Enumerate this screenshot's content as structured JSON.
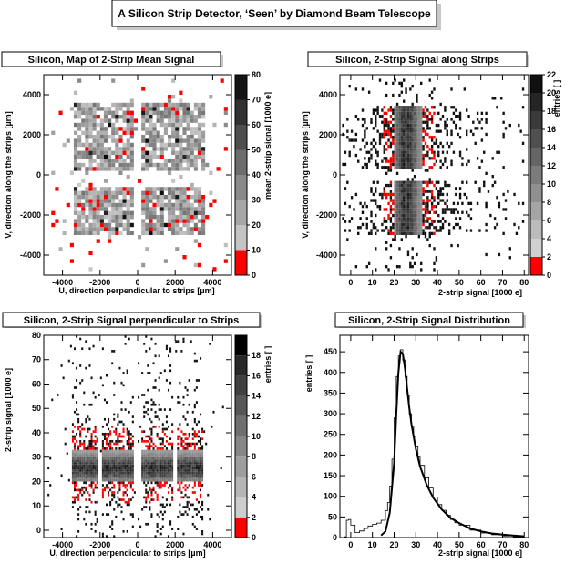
{
  "main_title": "A Silicon Strip Detector, ‘Seen’ by Diamond Beam Telescope",
  "chart_data": [
    {
      "type": "heatmap",
      "title": "Silicon, Map of 2-Strip Mean Signal",
      "xlabel": "U, direction perpendicular to strips [µm]",
      "ylabel": "V, direction along the strips [µm]",
      "zlabel": "mean 2-strip signal [1000 e]",
      "xlim": [
        -5000,
        5000
      ],
      "ylim": [
        -5000,
        5000
      ],
      "zlim": [
        0,
        80
      ],
      "xticks": [
        "-4000",
        "-2000",
        "0",
        "2000",
        "4000"
      ],
      "yticks": [
        "-4000",
        "-2000",
        "0",
        "2000",
        "4000"
      ],
      "zticks": [
        "0",
        "10",
        "20",
        "30",
        "40",
        "50",
        "60",
        "70",
        "80"
      ],
      "regions_um": [
        {
          "u": [
            -3500,
            -200
          ],
          "v": [
            200,
            3500
          ]
        },
        {
          "u": [
            200,
            3500
          ],
          "v": [
            200,
            3500
          ]
        },
        {
          "u": [
            -3500,
            -200
          ],
          "v": [
            -3000,
            -600
          ]
        },
        {
          "u": [
            200,
            3500
          ],
          "v": [
            -3000,
            -600
          ]
        }
      ],
      "typical_value": 30
    },
    {
      "type": "heatmap",
      "title": "Silicon, 2-Strip Signal along Strips",
      "xlabel": "2-strip signal [1000 e]",
      "ylabel": "V, direction along the strips [µm]",
      "zlabel": "entries [ ]",
      "xlim": [
        -5,
        82
      ],
      "ylim": [
        -5000,
        5000
      ],
      "zlim": [
        0,
        22
      ],
      "xticks": [
        "0",
        "10",
        "20",
        "30",
        "40",
        "50",
        "60",
        "70",
        "80"
      ],
      "yticks": [
        "-4000",
        "-2000",
        "0",
        "2000",
        "4000"
      ],
      "zticks": [
        "0",
        "2",
        "4",
        "6",
        "8",
        "10",
        "12",
        "14",
        "16",
        "18",
        "20",
        "22"
      ],
      "dense_signal_range": [
        20,
        33
      ],
      "v_bands": [
        [
          200,
          3400
        ],
        [
          -3000,
          -400
        ]
      ]
    },
    {
      "type": "heatmap",
      "title": "Silicon, 2-Strip Signal perpendicular to Strips",
      "xlabel": "U, direction perpendicular to strips [µm]",
      "ylabel": "2-strip signal [1000 e]",
      "zlabel": "entries [ ]",
      "xlim": [
        -5000,
        5000
      ],
      "ylim": [
        -3,
        80
      ],
      "zlim": [
        0,
        20
      ],
      "xticks": [
        "-4000",
        "-2000",
        "0",
        "2000",
        "4000"
      ],
      "yticks": [
        "0",
        "10",
        "20",
        "30",
        "40",
        "50",
        "60",
        "70",
        "80"
      ],
      "zticks": [
        "0",
        "2",
        "4",
        "6",
        "8",
        "10",
        "12",
        "14",
        "16",
        "18"
      ],
      "dense_signal_range": [
        20,
        33
      ],
      "u_bands": [
        [
          -3500,
          -2100
        ],
        [
          -1900,
          -200
        ],
        [
          200,
          1900
        ],
        [
          2100,
          3500
        ]
      ]
    },
    {
      "type": "line",
      "title": "Silicon, 2-Strip Signal Distribution",
      "xlabel": "2-strip signal [1000 e]",
      "ylabel": "entries [ ]",
      "xlim": [
        -5,
        82
      ],
      "ylim": [
        0,
        490
      ],
      "xticks": [
        "0",
        "10",
        "20",
        "30",
        "40",
        "50",
        "60",
        "70",
        "80"
      ],
      "yticks": [
        "0",
        "50",
        "100",
        "150",
        "200",
        "250",
        "300",
        "350",
        "400",
        "450"
      ],
      "x": [
        -3,
        -2,
        -1,
        0,
        2,
        4,
        6,
        8,
        10,
        12,
        14,
        16,
        17,
        18,
        19,
        20,
        21,
        22,
        23,
        24,
        25,
        26,
        27,
        28,
        29,
        30,
        31,
        32,
        34,
        36,
        38,
        40,
        42,
        44,
        46,
        48,
        50,
        55,
        60,
        65,
        70,
        75,
        80
      ],
      "values": [
        2,
        42,
        44,
        30,
        12,
        16,
        22,
        28,
        32,
        35,
        42,
        65,
        85,
        125,
        190,
        290,
        390,
        440,
        455,
        430,
        390,
        345,
        300,
        270,
        245,
        220,
        195,
        175,
        145,
        120,
        98,
        80,
        66,
        54,
        44,
        36,
        30,
        18,
        11,
        7,
        4,
        2,
        1
      ],
      "fit_x": [
        14,
        16,
        18,
        20,
        21,
        22,
        23,
        24,
        25,
        26,
        27,
        28,
        30,
        32,
        35,
        38,
        42,
        46,
        50,
        55,
        60,
        65,
        70,
        75,
        80
      ],
      "fit_values": [
        5,
        15,
        60,
        180,
        300,
        400,
        450,
        445,
        410,
        360,
        315,
        275,
        215,
        172,
        128,
        97,
        68,
        48,
        35,
        22,
        15,
        10,
        7,
        5,
        3
      ]
    }
  ]
}
